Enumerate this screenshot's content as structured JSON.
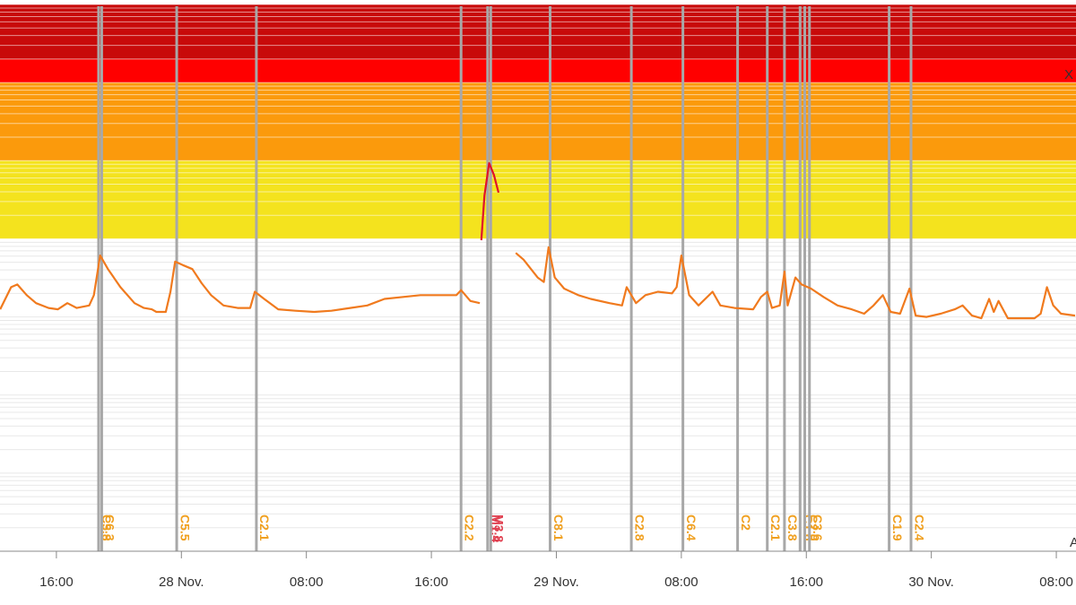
{
  "chart_data": {
    "type": "line",
    "log_y": true,
    "grid": true,
    "xlim": [
      12.39,
      81.26
    ],
    "ylim": [
      1e-10,
      0.001
    ],
    "xticks": [
      {
        "value": 16,
        "label": "16:00"
      },
      {
        "value": 24,
        "label": "28 Nov."
      },
      {
        "value": 32,
        "label": "08:00"
      },
      {
        "value": 40,
        "label": "16:00"
      },
      {
        "value": 48,
        "label": "29 Nov."
      },
      {
        "value": 56,
        "label": "08:00"
      },
      {
        "value": 64,
        "label": "16:00"
      },
      {
        "value": 72,
        "label": "30 Nov."
      },
      {
        "value": 80,
        "label": "08:00"
      }
    ],
    "yticks": [
      1e-10,
      1e-09,
      1e-08,
      1e-07,
      1e-06,
      1e-05,
      0.0001,
      0.001
    ],
    "minor_yticks": [
      2e-10,
      3e-10,
      4e-10,
      5e-10,
      6e-10,
      7e-10,
      8e-10,
      9e-10,
      2e-09,
      3e-09,
      4e-09,
      5e-09,
      6e-09,
      7e-09,
      8e-09,
      9e-09,
      2e-08,
      3e-08,
      4e-08,
      5e-08,
      6e-08,
      7e-08,
      8e-08,
      9e-08,
      2e-07,
      3e-07,
      4e-07,
      5e-07,
      6e-07,
      7e-07,
      8e-07,
      9e-07,
      2e-06,
      3e-06,
      4e-06,
      5e-06,
      6e-06,
      7e-06,
      8e-06,
      9e-06,
      2e-05,
      3e-05,
      4e-05,
      5e-05,
      6e-05,
      7e-05,
      8e-05,
      9e-05,
      0.0002,
      0.0003,
      0.0004,
      0.0005,
      0.0006,
      0.0007,
      0.0008,
      0.0009
    ],
    "bands": [
      {
        "from": 0.0002,
        "to": 0.001,
        "color": "#c80a0a"
      },
      {
        "from": 0.0001,
        "to": 0.0002,
        "color": "#ff0000"
      },
      {
        "from": 1e-05,
        "to": 0.0001,
        "color": "#fb9a0c"
      },
      {
        "from": 1e-06,
        "to": 1e-05,
        "color": "#f4e31e"
      }
    ],
    "annotations": [
      "X",
      "A"
    ],
    "x": [
      12.4,
      13.1,
      13.5,
      14.1,
      14.7,
      15.5,
      16.1,
      16.7,
      17.3,
      18.1,
      18.4,
      18.8,
      19.3,
      20.1,
      21.0,
      21.6,
      22.1,
      22.4,
      23.0,
      23.3,
      23.6,
      24.1,
      24.7,
      25.3,
      25.9,
      26.7,
      27.6,
      28.4,
      28.7,
      29.3,
      30.2,
      31.3,
      32.5,
      33.6,
      34.8,
      35.9,
      37.0,
      38.2,
      39.3,
      40.5,
      41.6,
      41.9,
      42.5,
      43.1,
      43.2,
      43.4,
      43.7,
      44.0,
      44.3,
      45.4,
      45.9,
      46.8,
      47.2,
      47.5,
      47.9,
      48.5,
      49.4,
      50.2,
      51.4,
      52.2,
      52.5,
      53.1,
      53.7,
      54.5,
      55.4,
      55.7,
      56.0,
      56.5,
      57.1,
      58.0,
      58.5,
      59.4,
      60.6,
      61.1,
      61.5,
      61.8,
      62.3,
      62.6,
      62.8,
      63.3,
      63.7,
      64.3,
      65.1,
      66.0,
      66.9,
      67.7,
      68.3,
      68.9,
      69.4,
      70.0,
      70.6,
      71.0,
      71.7,
      72.6,
      73.5,
      74.0,
      74.6,
      75.2,
      75.7,
      76.0,
      76.3,
      76.9,
      77.8,
      78.6,
      79.0,
      79.4,
      79.8,
      80.3,
      81.2
    ],
    "series": [
      {
        "color": "#f07a1e",
        "values": [
          1.25e-07,
          2.4e-07,
          2.6e-07,
          1.9e-07,
          1.5e-07,
          1.3e-07,
          1.25e-07,
          1.5e-07,
          1.3e-07,
          1.4e-07,
          1.9e-07,
          6.1e-07,
          4.1e-07,
          2.4e-07,
          1.5e-07,
          1.3e-07,
          1.25e-07,
          1.16e-07,
          1.16e-07,
          2.1e-07,
          5.1e-07,
          4.6e-07,
          4.1e-07,
          2.7e-07,
          1.9e-07,
          1.4e-07,
          1.3e-07,
          1.3e-07,
          2.1e-07,
          1.7e-07,
          1.25e-07,
          1.2e-07,
          1.16e-07,
          1.2e-07,
          1.3e-07,
          1.4e-07,
          1.7e-07,
          1.8e-07,
          1.9e-07,
          1.9e-07,
          1.9e-07,
          2.2e-07,
          1.6e-07,
          1.5e-07,
          null,
          null,
          null,
          null,
          null,
          6.6e-07,
          5.4e-07,
          3.2e-07,
          2.8e-07,
          7.8e-07,
          3.2e-07,
          2.3e-07,
          1.9e-07,
          1.7e-07,
          1.5e-07,
          1.4e-07,
          2.4e-07,
          1.5e-07,
          1.9e-07,
          2.1e-07,
          2e-07,
          2.4e-07,
          6.1e-07,
          1.9e-07,
          1.4e-07,
          2.1e-07,
          1.4e-07,
          1.3e-07,
          1.25e-07,
          1.8e-07,
          2.1e-07,
          1.3e-07,
          1.4e-07,
          3.8e-07,
          1.4e-07,
          3.2e-07,
          2.6e-07,
          2.3e-07,
          1.8e-07,
          1.4e-07,
          1.25e-07,
          1.1e-07,
          1.4e-07,
          1.9e-07,
          1.16e-07,
          1.1e-07,
          2.3e-07,
          1.04e-07,
          1e-07,
          1.1e-07,
          1.25e-07,
          1.4e-07,
          1.04e-07,
          9.6e-08,
          1.7e-07,
          1.16e-07,
          1.6e-07,
          9.6e-08,
          9.6e-08,
          9.6e-08,
          1.1e-07,
          2.4e-07,
          1.4e-07,
          1.1e-07,
          1.04e-07
        ]
      },
      {
        "color": "#e0102a",
        "values": [
          null,
          null,
          null,
          null,
          null,
          null,
          null,
          null,
          null,
          null,
          null,
          null,
          null,
          null,
          null,
          null,
          null,
          null,
          null,
          null,
          null,
          null,
          null,
          null,
          null,
          null,
          null,
          null,
          null,
          null,
          null,
          null,
          null,
          null,
          null,
          null,
          null,
          null,
          null,
          null,
          null,
          null,
          null,
          null,
          9.6e-07,
          3.6e-06,
          9.3e-06,
          6.6e-06,
          3.9e-06,
          null,
          null,
          null,
          null,
          null,
          null,
          null,
          null,
          null,
          null,
          null,
          null,
          null,
          null,
          null,
          null,
          null,
          null,
          null,
          null,
          null,
          null,
          null,
          null,
          null,
          null,
          null,
          null,
          null,
          null,
          null,
          null,
          null,
          null,
          null,
          null,
          null,
          null,
          null,
          null,
          null,
          null,
          null,
          null,
          null,
          null,
          null,
          null,
          null,
          null,
          null,
          null,
          null,
          null,
          null,
          null,
          null,
          null,
          null,
          null
        ]
      }
    ],
    "events": [
      {
        "x": 18.7,
        "label": "C5.8",
        "color": "#f0a020"
      },
      {
        "x": 18.9,
        "label": "C6.3",
        "color": "#f0a020"
      },
      {
        "x": 23.7,
        "label": "C5.5",
        "color": "#f0a020"
      },
      {
        "x": 28.8,
        "label": "C2.1",
        "color": "#f0a020"
      },
      {
        "x": 41.9,
        "label": "C2.2",
        "color": "#f0a020"
      },
      {
        "x": 43.6,
        "label": "M1.4",
        "color": "#e04050"
      },
      {
        "x": 43.8,
        "label": "M3.8",
        "color": "#e04050"
      },
      {
        "x": 47.6,
        "label": "C8.1",
        "color": "#f0a020"
      },
      {
        "x": 52.8,
        "label": "C2.8",
        "color": "#f0a020"
      },
      {
        "x": 56.1,
        "label": "C6.4",
        "color": "#f0a020"
      },
      {
        "x": 59.6,
        "label": "C2",
        "color": "#f0a020"
      },
      {
        "x": 61.5,
        "label": "C2.1",
        "color": "#f0a020"
      },
      {
        "x": 62.6,
        "label": "C3.8",
        "color": "#f0a020"
      },
      {
        "x": 63.6,
        "label": "C1.6",
        "color": "#f0a020"
      },
      {
        "x": 63.9,
        "label": "C2.0",
        "color": "#f0a020"
      },
      {
        "x": 64.2,
        "label": "C3.6",
        "color": "#f0a020"
      },
      {
        "x": 69.3,
        "label": "C1.9",
        "color": "#f0a020"
      },
      {
        "x": 70.7,
        "label": "C2.4",
        "color": "#f0a020"
      }
    ]
  }
}
